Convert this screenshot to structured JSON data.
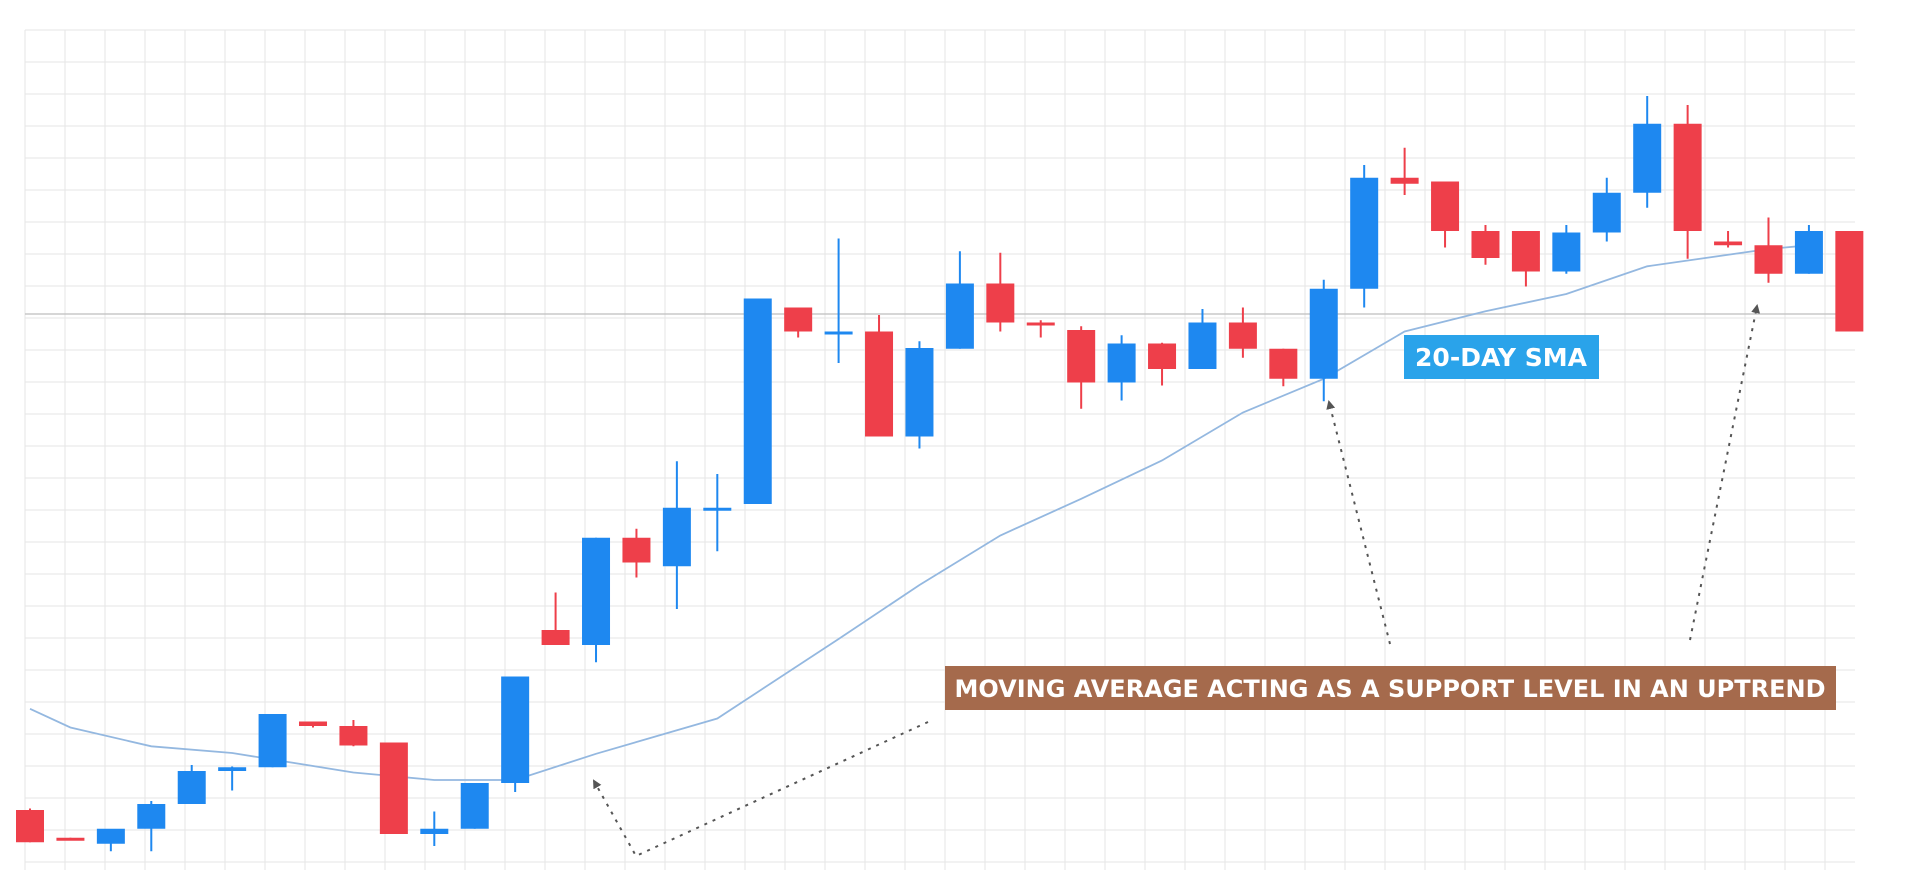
{
  "chart_data": {
    "type": "candlestick",
    "title": "",
    "xlabel": "",
    "ylabel": "",
    "ylim": [
      0,
      100
    ],
    "grid": true,
    "colors": {
      "up": "#1e88f0",
      "down": "#ee3f4a",
      "sma": "#94b8e0",
      "grid": "#e6e6e6",
      "sma_label_bg": "#2aa3ea",
      "support_label_bg": "#a56a4c",
      "arrow": "#555555"
    },
    "candles": [
      {
        "o": 4.0,
        "h": 4.2,
        "l": -0.3,
        "c": -0.3
      },
      {
        "o": 0.3,
        "h": 0.3,
        "l": 0.2,
        "c": 0.0
      },
      {
        "o": -0.5,
        "h": 0.5,
        "l": -1.5,
        "c": 1.5
      },
      {
        "o": 1.5,
        "h": 5.2,
        "l": -1.5,
        "c": 4.8
      },
      {
        "o": 4.8,
        "h": 10.0,
        "l": 4.8,
        "c": 9.2
      },
      {
        "o": 9.2,
        "h": 9.8,
        "l": 6.6,
        "c": 9.7
      },
      {
        "o": 9.7,
        "h": 16.8,
        "l": 9.7,
        "c": 16.8
      },
      {
        "o": 15.8,
        "h": 15.8,
        "l": 15.0,
        "c": 15.2
      },
      {
        "o": 15.2,
        "h": 16.0,
        "l": 12.5,
        "c": 12.6
      },
      {
        "o": 13.0,
        "h": 13.0,
        "l": 0.8,
        "c": 0.8
      },
      {
        "o": 0.8,
        "h": 3.8,
        "l": -0.8,
        "c": 1.5
      },
      {
        "o": 1.5,
        "h": 7.6,
        "l": 1.5,
        "c": 7.6
      },
      {
        "o": 7.6,
        "h": 21.8,
        "l": 6.4,
        "c": 21.8
      },
      {
        "o": 28.0,
        "h": 33.0,
        "l": 27.0,
        "c": 26.0
      },
      {
        "o": 26.0,
        "h": 40.3,
        "l": 23.7,
        "c": 40.3
      },
      {
        "o": 40.3,
        "h": 41.5,
        "l": 35.0,
        "c": 37.0
      },
      {
        "o": 36.5,
        "h": 50.5,
        "l": 30.8,
        "c": 44.3
      },
      {
        "o": 44.3,
        "h": 48.8,
        "l": 38.5,
        "c": 44.3
      },
      {
        "o": 44.8,
        "h": 72.2,
        "l": 44.8,
        "c": 72.2
      },
      {
        "o": 71.0,
        "h": 71.0,
        "l": 67.0,
        "c": 67.8
      },
      {
        "o": 67.8,
        "h": 80.2,
        "l": 63.6,
        "c": 67.8
      },
      {
        "o": 67.8,
        "h": 70.0,
        "l": 53.8,
        "c": 53.8
      },
      {
        "o": 53.8,
        "h": 66.5,
        "l": 52.2,
        "c": 65.6
      },
      {
        "o": 65.5,
        "h": 78.5,
        "l": 65.5,
        "c": 74.2
      },
      {
        "o": 74.2,
        "h": 78.3,
        "l": 67.8,
        "c": 69.0
      },
      {
        "o": 69.0,
        "h": 69.3,
        "l": 67.0,
        "c": 68.7
      },
      {
        "o": 68.0,
        "h": 68.5,
        "l": 57.5,
        "c": 61.0
      },
      {
        "o": 61.0,
        "h": 67.3,
        "l": 58.6,
        "c": 66.2
      },
      {
        "o": 66.2,
        "h": 66.3,
        "l": 60.6,
        "c": 62.8
      },
      {
        "o": 62.8,
        "h": 70.8,
        "l": 62.8,
        "c": 69.0
      },
      {
        "o": 69.0,
        "h": 71.0,
        "l": 64.3,
        "c": 65.5
      },
      {
        "o": 65.5,
        "h": 65.5,
        "l": 60.5,
        "c": 61.5
      },
      {
        "o": 61.5,
        "h": 74.7,
        "l": 58.5,
        "c": 73.5
      },
      {
        "o": 73.5,
        "h": 90.0,
        "l": 71.0,
        "c": 88.3
      },
      {
        "o": 88.3,
        "h": 92.3,
        "l": 86.0,
        "c": 87.5
      },
      {
        "o": 87.8,
        "h": 87.8,
        "l": 79.0,
        "c": 81.2
      },
      {
        "o": 81.2,
        "h": 82.0,
        "l": 76.7,
        "c": 77.6
      },
      {
        "o": 81.2,
        "h": 81.2,
        "l": 73.8,
        "c": 75.8
      },
      {
        "o": 75.8,
        "h": 82.0,
        "l": 75.5,
        "c": 81.0
      },
      {
        "o": 81.0,
        "h": 88.3,
        "l": 79.8,
        "c": 86.3
      },
      {
        "o": 86.3,
        "h": 99.2,
        "l": 84.3,
        "c": 95.5
      },
      {
        "o": 95.5,
        "h": 98.0,
        "l": 77.5,
        "c": 81.2
      },
      {
        "o": 79.8,
        "h": 81.2,
        "l": 79.0,
        "c": 79.3
      },
      {
        "o": 79.3,
        "h": 83.0,
        "l": 74.3,
        "c": 75.5
      },
      {
        "o": 75.5,
        "h": 82.0,
        "l": 75.5,
        "c": 81.2
      },
      {
        "o": 81.2,
        "h": 81.2,
        "l": 67.8,
        "c": 67.8
      }
    ],
    "sma": [
      {
        "i": 0,
        "v": 17.5
      },
      {
        "i": 1,
        "v": 15.0
      },
      {
        "i": 3,
        "v": 12.5
      },
      {
        "i": 5,
        "v": 11.6
      },
      {
        "i": 8,
        "v": 9.0
      },
      {
        "i": 10,
        "v": 8.0
      },
      {
        "i": 12,
        "v": 8.0
      },
      {
        "i": 14,
        "v": 11.5
      },
      {
        "i": 17,
        "v": 16.2
      },
      {
        "i": 20,
        "v": 26.8
      },
      {
        "i": 22,
        "v": 34.0
      },
      {
        "i": 24,
        "v": 40.6
      },
      {
        "i": 26,
        "v": 45.5
      },
      {
        "i": 28,
        "v": 50.6
      },
      {
        "i": 30,
        "v": 57.0
      },
      {
        "i": 32,
        "v": 61.5
      },
      {
        "i": 34,
        "v": 67.8
      },
      {
        "i": 36,
        "v": 70.5
      },
      {
        "i": 38,
        "v": 72.8
      },
      {
        "i": 40,
        "v": 76.5
      },
      {
        "i": 43,
        "v": 78.8
      },
      {
        "i": 44,
        "v": 79.3
      }
    ],
    "annotations": {
      "sma_label": "20-DAY SMA",
      "support_label": "MOVING AVERAGE ACTING AS A SUPPORT LEVEL IN AN UPTREND"
    }
  }
}
